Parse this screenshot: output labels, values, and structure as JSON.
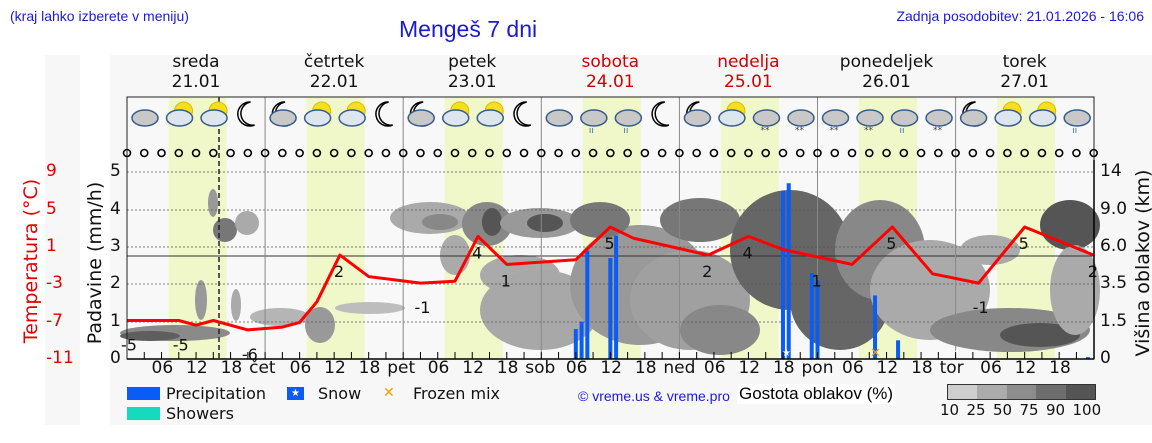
{
  "header": {
    "location_hint": "(kraj lahko izberete v meniju)",
    "title": "Mengeš 7 dni",
    "updated": "Zadnja posodobitev: 21.01.2026 - 16:06"
  },
  "days": [
    {
      "name": "sreda",
      "date": "21.01",
      "weekend": false
    },
    {
      "name": "četrtek",
      "date": "22.01",
      "weekend": false
    },
    {
      "name": "petek",
      "date": "23.01",
      "weekend": false
    },
    {
      "name": "sobota",
      "date": "24.01",
      "weekend": true
    },
    {
      "name": "nedelja",
      "date": "25.01",
      "weekend": true
    },
    {
      "name": "ponedeljek",
      "date": "26.01",
      "weekend": false
    },
    {
      "name": "torek",
      "date": "27.01",
      "weekend": false
    }
  ],
  "axes": {
    "temp_label": "Temperatura (°C)",
    "precip_label": "Padavine (mm/h)",
    "cloud_height_label": "Višina oblakov (km)",
    "temp_ticks": [
      "9",
      "5",
      "1",
      "-3",
      "-7",
      "-11"
    ],
    "precip_ticks": [
      "5",
      "4",
      "3",
      "2",
      "1",
      "0"
    ],
    "cloud_height_ticks": [
      "14",
      "9.0",
      "6.0",
      "3.5",
      "1.5",
      "0"
    ],
    "x_ticks": [
      "06",
      "12",
      "18",
      "čet",
      "06",
      "12",
      "18",
      "pet",
      "06",
      "12",
      "18",
      "sob",
      "06",
      "12",
      "18",
      "ned",
      "06",
      "12",
      "18",
      "pon",
      "06",
      "12",
      "18",
      "tor",
      "06",
      "12",
      "18"
    ]
  },
  "legend": {
    "precipitation": "Precipitation",
    "showers": "Showers",
    "snow": "Snow",
    "frozen_mix": "Frozen mix",
    "copyright": "© vreme.us & vreme.pro",
    "cloud_density_label": "Gostota oblakov (%)",
    "cloud_density_ticks": [
      "10",
      "25",
      "50",
      "75",
      "90",
      "100"
    ]
  },
  "colors": {
    "precipitation": "#0a5cf5",
    "showers": "#17d9c0",
    "temperature": "#ff0000",
    "daylight": "#f0f7c8",
    "title_blue": "#1a1ad6",
    "weekend_red": "#d00000",
    "frozen_mix": "#f0a000"
  },
  "chart_data": {
    "type": "line",
    "title": "Mengeš 7 dni",
    "xlabel": "",
    "ylabel": "Padavine (mm/h)",
    "ylim": [
      0,
      5
    ],
    "grid": true,
    "x_range": "21.01.2026 00:00 - 27.01.2026 24:00",
    "series": [
      {
        "name": "Temperatura (°C)",
        "axis": "left-temperature",
        "points": [
          {
            "t": "21.01 00",
            "v": -5
          },
          {
            "t": "21.01 09",
            "v": -5
          },
          {
            "t": "21.01 12",
            "v": -5.5
          },
          {
            "t": "21.01 15",
            "v": -5
          },
          {
            "t": "21.01 21",
            "v": -6
          },
          {
            "t": "22.01 03",
            "v": -5.7
          },
          {
            "t": "22.01 06",
            "v": -5.2
          },
          {
            "t": "22.01 09",
            "v": -3
          },
          {
            "t": "22.01 13",
            "v": 2
          },
          {
            "t": "22.01 18",
            "v": -0.3
          },
          {
            "t": "23.01 03",
            "v": -1
          },
          {
            "t": "23.01 09",
            "v": -0.8
          },
          {
            "t": "23.01 13",
            "v": 4
          },
          {
            "t": "23.01 18",
            "v": 1
          },
          {
            "t": "24.01 06",
            "v": 1.5
          },
          {
            "t": "24.01 12",
            "v": 5
          },
          {
            "t": "24.01 16",
            "v": 3.8
          },
          {
            "t": "25.01 05",
            "v": 2
          },
          {
            "t": "25.01 12",
            "v": 4
          },
          {
            "t": "25.01 18",
            "v": 2.6
          },
          {
            "t": "26.01 06",
            "v": 1
          },
          {
            "t": "26.01 13",
            "v": 5
          },
          {
            "t": "26.01 20",
            "v": 0
          },
          {
            "t": "27.01 04",
            "v": -1
          },
          {
            "t": "27.01 12",
            "v": 5
          },
          {
            "t": "27.01 24",
            "v": 2
          }
        ]
      },
      {
        "name": "Precipitation",
        "type": "bar",
        "axis": "precip",
        "points": [
          {
            "t": "24.01 06",
            "v": 0.8
          },
          {
            "t": "24.01 07",
            "v": 1.0
          },
          {
            "t": "24.01 08",
            "v": 2.9
          },
          {
            "t": "24.01 12",
            "v": 2.7
          },
          {
            "t": "24.01 13",
            "v": 3.3
          },
          {
            "t": "25.01 18",
            "v": 4.5
          },
          {
            "t": "25.01 19",
            "v": 4.7
          },
          {
            "t": "25.01 23",
            "v": 2.3
          },
          {
            "t": "26.01 00",
            "v": 2.1
          },
          {
            "t": "26.01 10",
            "v": 1.7
          },
          {
            "t": "26.01 14",
            "v": 0.5
          },
          {
            "t": "27.01 23",
            "v": 0.05
          }
        ]
      }
    ],
    "temperature_labels": [
      {
        "t": "21.01 00",
        "label": "-5"
      },
      {
        "t": "21.01 09",
        "label": "-5"
      },
      {
        "t": "21.01 21",
        "label": "-6"
      },
      {
        "t": "22.01 13",
        "label": "2"
      },
      {
        "t": "23.01 03",
        "label": "-1"
      },
      {
        "t": "23.01 13",
        "label": "4"
      },
      {
        "t": "23.01 18",
        "label": "1"
      },
      {
        "t": "24.01 12",
        "label": "5"
      },
      {
        "t": "25.01 05",
        "label": "2"
      },
      {
        "t": "25.01 12",
        "label": "4"
      },
      {
        "t": "26.01 00",
        "label": "1"
      },
      {
        "t": "26.01 13",
        "label": "5"
      },
      {
        "t": "27.01 04",
        "label": "-1"
      },
      {
        "t": "27.01 12",
        "label": "5"
      },
      {
        "t": "27.01 24",
        "label": "2"
      }
    ],
    "markers": [
      {
        "type": "snow",
        "t": "25.01 18"
      },
      {
        "type": "snow",
        "t": "25.01 19"
      },
      {
        "type": "frozen_mix",
        "t": "26.01 10"
      },
      {
        "type": "snow",
        "t": "26.01 24"
      }
    ],
    "secondary_axes": {
      "temperature": {
        "ticks": [
          9,
          5,
          1,
          -3,
          -7,
          -11
        ]
      },
      "cloud_height_km": {
        "ticks": [
          14,
          9.0,
          6.0,
          3.5,
          1.5,
          0
        ]
      }
    },
    "now_marker": "21.01 16:06"
  }
}
